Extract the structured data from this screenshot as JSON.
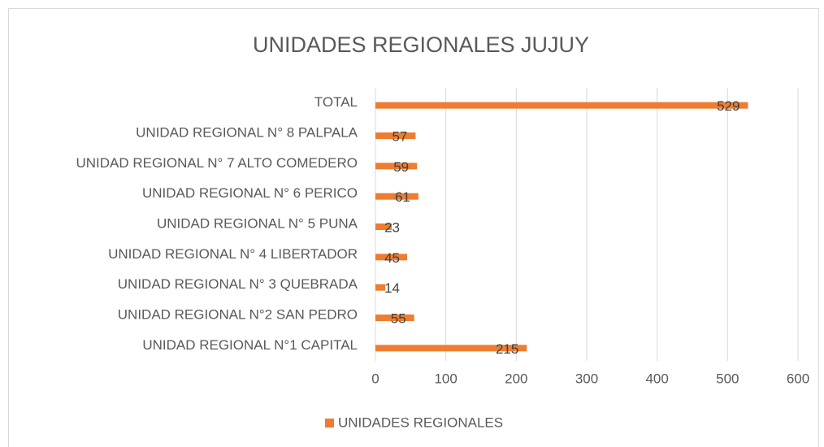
{
  "chart_data": {
    "type": "bar",
    "orientation": "horizontal",
    "title": "UNIDADES REGIONALES JUJUY",
    "categories": [
      "TOTAL",
      "UNIDAD REGIONAL N° 8 PALPALA",
      "UNIDAD REGIONAL N° 7 ALTO COMEDERO",
      "UNIDAD REGIONAL N° 6 PERICO",
      "UNIDAD REGIONAL N° 5 PUNA",
      "UNIDAD REGIONAL N° 4 LIBERTADOR",
      "UNIDAD REGIONAL N° 3 QUEBRADA",
      "UNIDAD REGIONAL N°2 SAN PEDRO",
      "UNIDAD REGIONAL N°1 CAPITAL"
    ],
    "series": [
      {
        "name": "UNIDADES REGIONALES",
        "color": "#ed7d31",
        "values": [
          529,
          57,
          59,
          61,
          23,
          45,
          14,
          55,
          215
        ]
      }
    ],
    "xlim": [
      0,
      600
    ],
    "xticks": [
      0,
      100,
      200,
      300,
      400,
      500,
      600
    ],
    "grid": true,
    "legend": "bottom"
  }
}
